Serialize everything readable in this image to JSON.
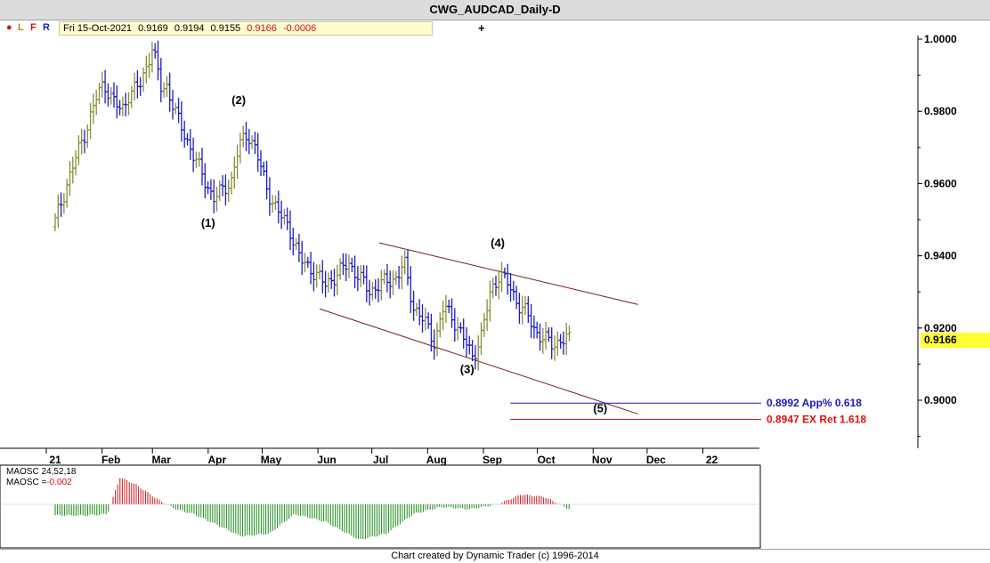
{
  "window": {
    "title": "CWG_AUDCAD_Daily-D"
  },
  "info_bar": {
    "dot": "●",
    "l": "L",
    "f": "F",
    "r": "R",
    "date": "Fri 15-Oct-2021",
    "open": "0.9169",
    "high": "0.9194",
    "low": "0.9155",
    "close": "0.9166",
    "change": "-0.0006",
    "plus": "+"
  },
  "colors": {
    "up": "#8b8b3a",
    "down": "#1c1cc8",
    "channel": "#7a1a1a",
    "blue_level": "#1a1ab8",
    "red_level": "#e01010",
    "osc_red": "#c8141a",
    "osc_green": "#1a8a1a",
    "price_tag": "#ffff33"
  },
  "chart_data": [
    {
      "type": "ohlc",
      "title": "CWG_AUDCAD_Daily-D",
      "y_axis_ticks": [
        "1.0000",
        "0.9800",
        "0.9600",
        "0.9400",
        "0.9200",
        "0.9000"
      ],
      "ylim": [
        0.8778,
        1.0028
      ],
      "x_axis_labels": [
        "21",
        "Feb",
        "Mar",
        "Apr",
        "May",
        "Jun",
        "Jul",
        "Aug",
        "Sep",
        "Oct",
        "Nov",
        "Dec",
        "22"
      ],
      "last_price": "0.9166",
      "close_path": [
        {
          "d": "2021-01-01",
          "y": 0.948
        },
        {
          "d": "2021-01-08",
          "y": 0.959
        },
        {
          "d": "2021-01-14",
          "y": 0.968
        },
        {
          "d": "2021-01-20",
          "y": 0.976
        },
        {
          "d": "2021-01-25",
          "y": 0.984
        },
        {
          "d": "2021-01-29",
          "y": 0.988
        },
        {
          "d": "2021-02-03",
          "y": 0.983
        },
        {
          "d": "2021-02-08",
          "y": 0.98
        },
        {
          "d": "2021-02-12",
          "y": 0.985
        },
        {
          "d": "2021-02-18",
          "y": 0.987
        },
        {
          "d": "2021-02-22",
          "y": 0.993
        },
        {
          "d": "2021-02-25",
          "y": 0.998
        },
        {
          "d": "2021-03-02",
          "y": 0.986
        },
        {
          "d": "2021-03-05",
          "y": 0.987
        },
        {
          "d": "2021-03-11",
          "y": 0.978
        },
        {
          "d": "2021-03-18",
          "y": 0.97
        },
        {
          "d": "2021-03-25",
          "y": 0.962
        },
        {
          "d": "2021-03-31",
          "y": 0.956
        },
        {
          "d": "2021-04-05",
          "y": 0.958
        },
        {
          "d": "2021-04-10",
          "y": 0.961
        },
        {
          "d": "2021-04-14",
          "y": 0.97
        },
        {
          "d": "2021-04-19",
          "y": 0.974
        },
        {
          "d": "2021-04-23",
          "y": 0.97
        },
        {
          "d": "2021-04-30",
          "y": 0.958
        },
        {
          "d": "2021-05-06",
          "y": 0.952
        },
        {
          "d": "2021-05-12",
          "y": 0.948
        },
        {
          "d": "2021-05-18",
          "y": 0.939
        },
        {
          "d": "2021-05-25",
          "y": 0.936
        },
        {
          "d": "2021-06-01",
          "y": 0.932
        },
        {
          "d": "2021-06-08",
          "y": 0.935
        },
        {
          "d": "2021-06-14",
          "y": 0.938
        },
        {
          "d": "2021-06-20",
          "y": 0.934
        },
        {
          "d": "2021-06-26",
          "y": 0.93
        },
        {
          "d": "2021-07-01",
          "y": 0.932
        },
        {
          "d": "2021-07-06",
          "y": 0.933
        },
        {
          "d": "2021-07-11",
          "y": 0.934
        },
        {
          "d": "2021-07-15",
          "y": 0.938
        },
        {
          "d": "2021-07-20",
          "y": 0.926
        },
        {
          "d": "2021-07-26",
          "y": 0.922
        },
        {
          "d": "2021-08-01",
          "y": 0.916
        },
        {
          "d": "2021-08-06",
          "y": 0.926
        },
        {
          "d": "2021-08-12",
          "y": 0.922
        },
        {
          "d": "2021-08-18",
          "y": 0.916
        },
        {
          "d": "2021-08-22",
          "y": 0.912
        },
        {
          "d": "2021-08-27",
          "y": 0.918
        },
        {
          "d": "2021-09-01",
          "y": 0.93
        },
        {
          "d": "2021-09-06",
          "y": 0.935
        },
        {
          "d": "2021-09-11",
          "y": 0.932
        },
        {
          "d": "2021-09-16",
          "y": 0.927
        },
        {
          "d": "2021-09-21",
          "y": 0.924
        },
        {
          "d": "2021-09-26",
          "y": 0.919
        },
        {
          "d": "2021-10-01",
          "y": 0.917
        },
        {
          "d": "2021-10-06",
          "y": 0.915
        },
        {
          "d": "2021-10-10",
          "y": 0.917
        },
        {
          "d": "2021-10-15",
          "y": 0.9166
        }
      ],
      "wave_labels": [
        {
          "text": "(1)",
          "d": "2021-03-28",
          "y": 0.948
        },
        {
          "text": "(2)",
          "d": "2021-04-14",
          "y": 0.982
        },
        {
          "text": "(3)",
          "d": "2021-08-19",
          "y": 0.9075
        },
        {
          "text": "(4)",
          "d": "2021-09-05",
          "y": 0.9425
        },
        {
          "text": "(5)",
          "d": "2021-11-01",
          "y": 0.8967
        }
      ],
      "channel_lines": [
        {
          "from": {
            "d": "2021-07-01",
            "y": 0.9436
          },
          "to": {
            "d": "2021-11-22",
            "y": 0.9265
          }
        },
        {
          "from": {
            "d": "2021-05-29",
            "y": 0.9253
          },
          "to": {
            "d": "2021-11-22",
            "y": 0.8962
          }
        }
      ],
      "levels": [
        {
          "value": 0.8992,
          "label": "0.8992 App% 0.618",
          "color": "#1a1ab8",
          "from_d": "2021-09-12"
        },
        {
          "value": 0.8947,
          "label": "0.8947 EX Ret 1.618",
          "color": "#e01010",
          "from_d": "2021-09-12"
        }
      ]
    },
    {
      "type": "bar",
      "title": "MAOSC 24,52,18",
      "readout_label": "MAOSC =",
      "readout_value": "-0.002",
      "series_path": [
        {
          "d": "2021-01-01",
          "v": -0.0045
        },
        {
          "d": "2021-01-20",
          "v": -0.0045
        },
        {
          "d": "2021-01-31",
          "v": -0.004
        },
        {
          "d": "2021-02-07",
          "v": 0.011
        },
        {
          "d": "2021-02-16",
          "v": 0.008
        },
        {
          "d": "2021-02-28",
          "v": 0.002
        },
        {
          "d": "2021-03-10",
          "v": -0.002
        },
        {
          "d": "2021-03-20",
          "v": -0.004
        },
        {
          "d": "2021-04-01",
          "v": -0.008
        },
        {
          "d": "2021-04-15",
          "v": -0.013
        },
        {
          "d": "2021-05-01",
          "v": -0.012
        },
        {
          "d": "2021-05-15",
          "v": -0.004
        },
        {
          "d": "2021-06-01",
          "v": -0.007
        },
        {
          "d": "2021-06-20",
          "v": -0.0145
        },
        {
          "d": "2021-07-05",
          "v": -0.012
        },
        {
          "d": "2021-07-20",
          "v": -0.004
        },
        {
          "d": "2021-08-05",
          "v": -0.001
        },
        {
          "d": "2021-08-20",
          "v": -0.002
        },
        {
          "d": "2021-09-05",
          "v": 0.0
        },
        {
          "d": "2021-09-18",
          "v": 0.004
        },
        {
          "d": "2021-10-01",
          "v": 0.003
        },
        {
          "d": "2021-10-15",
          "v": -0.002
        }
      ]
    }
  ],
  "footer": {
    "credit": "Chart created by Dynamic Trader  (c) 1996-2014"
  }
}
